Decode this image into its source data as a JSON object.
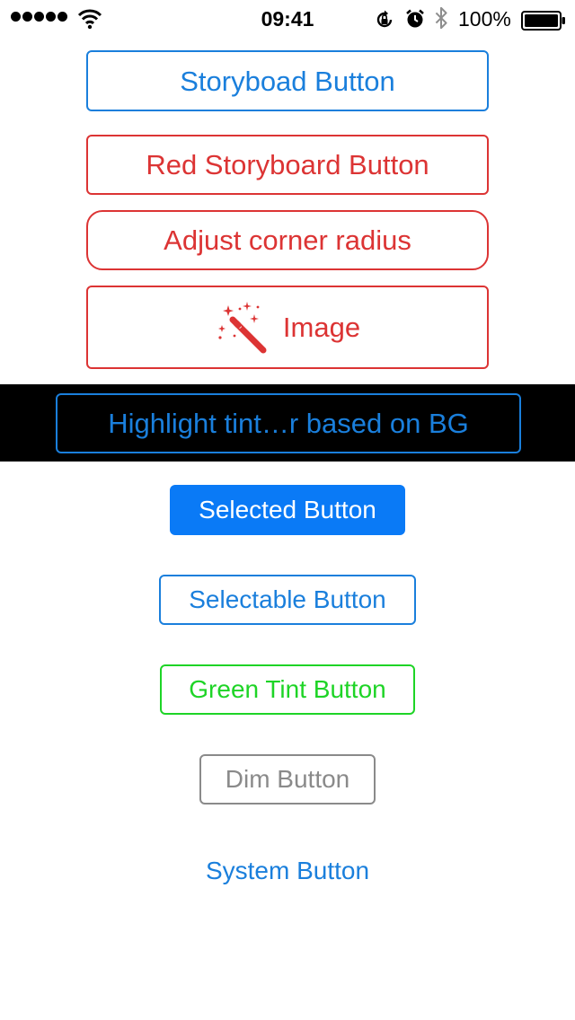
{
  "status_bar": {
    "signal_dots": 5,
    "time": "09:41",
    "battery_percent": "100%",
    "icons": [
      "wifi-icon",
      "orientation-lock-icon",
      "alarm-icon",
      "bluetooth-icon",
      "battery-icon"
    ]
  },
  "buttons": {
    "storyboard": "Storyboad Button",
    "red_storyboard": "Red Storyboard Button",
    "corner_radius": "Adjust corner radius",
    "image": "Image",
    "highlight": "Highlight tint…r based on BG",
    "selected": "Selected Button",
    "selectable": "Selectable Button",
    "green_tint": "Green Tint Button",
    "dim": "Dim Button",
    "system": "System Button"
  },
  "colors": {
    "blue": "#1a7fdc",
    "red": "#dc3434",
    "green": "#1ed426",
    "gray": "#8a8a8a",
    "selected_fill": "#0a7af6",
    "band_bg": "#000000"
  }
}
